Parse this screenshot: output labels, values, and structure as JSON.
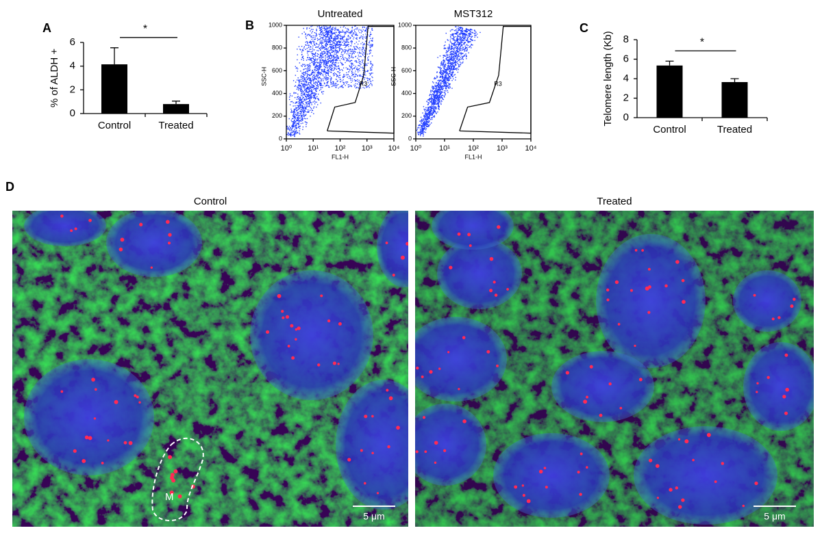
{
  "chart_data": [
    {
      "type": "bar",
      "label": "A",
      "ylabel": "% of ALDH +",
      "categories": [
        "Control",
        "Treated"
      ],
      "values": [
        4.15,
        0.8
      ],
      "errors": [
        1.4,
        0.25
      ],
      "color": "#000000",
      "ylim": [
        0,
        6
      ],
      "yticks": [
        0,
        2,
        4,
        6
      ],
      "annotation": "*"
    },
    {
      "type": "scatter",
      "label": "B",
      "title": "Untreated",
      "xlabel": "FL1-H",
      "ylabel": "SSC-H",
      "log_x": true,
      "xlim": [
        1,
        10000
      ],
      "xticks": [
        {
          "value": 1,
          "label": "10⁰"
        },
        {
          "value": 10,
          "label": "10¹"
        },
        {
          "value": 100,
          "label": "10²"
        },
        {
          "value": 1000,
          "label": "10³"
        },
        {
          "value": 10000,
          "label": "10⁴"
        }
      ],
      "ylim": [
        0,
        1000
      ],
      "yticks": [
        0,
        200,
        400,
        600,
        800,
        1000
      ],
      "color": "#1f3cff",
      "gate_label": "R3"
    },
    {
      "type": "scatter",
      "title": "MST312",
      "xlabel": "FL1-H",
      "ylabel": "SSC-H",
      "log_x": true,
      "xlim": [
        1,
        10000
      ],
      "xticks": [
        {
          "value": 1,
          "label": "10⁰"
        },
        {
          "value": 10,
          "label": "10¹"
        },
        {
          "value": 100,
          "label": "10²"
        },
        {
          "value": 1000,
          "label": "10³"
        },
        {
          "value": 10000,
          "label": "10⁴"
        }
      ],
      "ylim": [
        0,
        1000
      ],
      "yticks": [
        0,
        200,
        400,
        600,
        800,
        1000
      ],
      "color": "#1f3cff",
      "gate_label": "R3"
    },
    {
      "type": "bar",
      "label": "C",
      "ylabel": "Telomere length (Kb)",
      "categories": [
        "Control",
        "Treated"
      ],
      "values": [
        5.35,
        3.65
      ],
      "errors": [
        0.45,
        0.35
      ],
      "color": "#000000",
      "ylim": [
        0,
        8
      ],
      "yticks": [
        0,
        2,
        4,
        6,
        8
      ],
      "annotation": "*"
    }
  ],
  "microscopy": {
    "label": "D",
    "images": [
      {
        "title": "Control",
        "marker": "M",
        "scale_bar": "5 μm"
      },
      {
        "title": "Treated",
        "scale_bar": "5 μm"
      }
    ]
  }
}
